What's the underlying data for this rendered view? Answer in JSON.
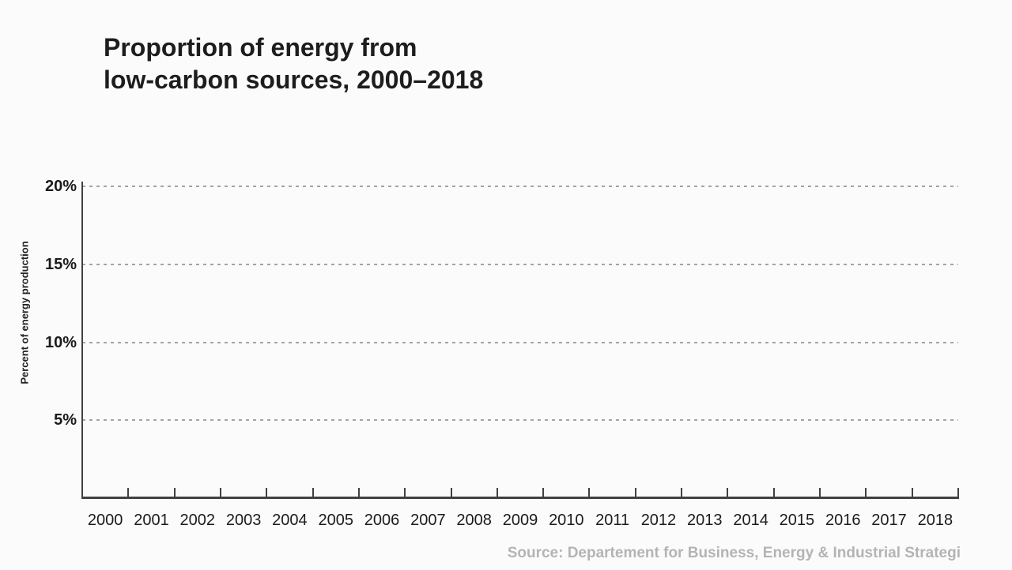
{
  "colors": {
    "background": "#fbfbfb",
    "title_text": "#1d1d1d",
    "axis": "#414141",
    "gridline": "#a4a4a4",
    "tick_label": "#1b1b1b",
    "source_text": "#b4b4b4"
  },
  "chart_data": {
    "type": "line",
    "title": "Proportion of energy from low-carbon sources, 2000–2018",
    "title_lines": [
      "Proportion of energy from",
      "low-carbon sources, 2000–2018"
    ],
    "ylabel": "Percent of energy production",
    "xlabel": "",
    "categories": [
      "2000",
      "2001",
      "2002",
      "2003",
      "2004",
      "2005",
      "2006",
      "2007",
      "2008",
      "2009",
      "2010",
      "2011",
      "2012",
      "2013",
      "2014",
      "2015",
      "2016",
      "2017",
      "2018"
    ],
    "series": [],
    "ylim": [
      0,
      20
    ],
    "yticks": [
      5,
      10,
      15,
      20
    ],
    "ytick_labels": [
      "5%",
      "10%",
      "15%",
      "20%"
    ],
    "grid": "horizontal-dashed",
    "legend": "none",
    "source": "Source: Departement for Business, Energy & Industrial Strategi"
  }
}
